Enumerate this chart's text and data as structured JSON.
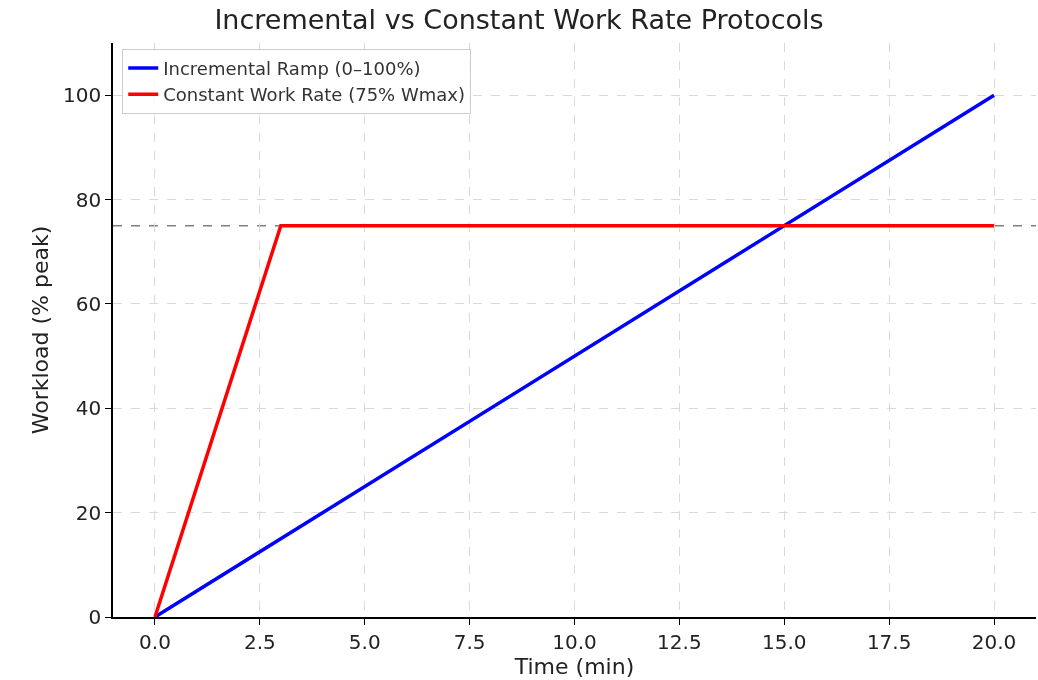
{
  "chart_data": {
    "type": "line",
    "title": "Incremental vs Constant Work Rate Protocols",
    "xlabel": "Time (min)",
    "ylabel": "Workload (% peak)",
    "series": [
      {
        "name": "Incremental Ramp (0–100%)",
        "color": "#0000ff",
        "x": [
          0,
          20
        ],
        "values": [
          0,
          100
        ]
      },
      {
        "name": "Constant Work Rate (75% Wmax)",
        "color": "#ff0000",
        "x": [
          0,
          3,
          20
        ],
        "values": [
          0,
          75,
          75
        ]
      }
    ],
    "xlim": [
      -1,
      21
    ],
    "xticks": [
      {
        "value": 0,
        "label": "0.0"
      },
      {
        "value": 2.5,
        "label": "2.5"
      },
      {
        "value": 5,
        "label": "5.0"
      },
      {
        "value": 7.5,
        "label": "7.5"
      },
      {
        "value": 10,
        "label": "10.0"
      },
      {
        "value": 12.5,
        "label": "12.5"
      },
      {
        "value": 15,
        "label": "15.0"
      },
      {
        "value": 17.5,
        "label": "17.5"
      },
      {
        "value": 20,
        "label": "20.0"
      }
    ],
    "ylim": [
      0,
      110
    ],
    "yticks": [
      0,
      20,
      40,
      60,
      80,
      100
    ],
    "ref_lines": [
      {
        "axis": "y",
        "value": 75,
        "label": null,
        "color": "#808080",
        "line_style": "dashed"
      }
    ],
    "grid": true,
    "legend": "top left",
    "marker": "none",
    "line_style": "solid"
  }
}
